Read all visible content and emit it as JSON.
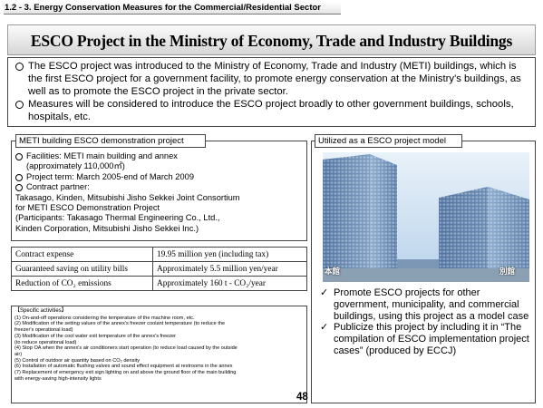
{
  "section": {
    "header": "1.2 - 3. Energy Conservation Measures for the Commercial/Residential Sector"
  },
  "title": "ESCO Project in the Ministry of Economy, Trade and Industry Buildings",
  "intro": {
    "items": [
      "The ESCO project was introduced to the Ministry of Economy, Trade and Industry (METI) buildings, which is the first ESCO project for a government facility, to promote energy conservation at the Ministry's buildings, as well as to promote the ESCO project in the private sector.",
      "Measures will be considered to introduce the ESCO project broadly to other government buildings, schools, hospitals, etc."
    ]
  },
  "demo": {
    "tab": "METI building ESCO demonstration project",
    "facilities_label": "Facilities: METI  main building and annex",
    "facilities_area": "(approximately 110,000㎡)",
    "period": "Project term: March 2005-end of March 2009",
    "partner_label": "Contract partner:",
    "partner_line1": "Takasago, Kinden, Mitsubishi Jisho Sekkei Joint Consortium",
    "partner_line2": "for METI ESCO  Demonstration Project",
    "partner_line3": "(Participants: Takasago Thermal Engineering Co., Ltd.,",
    "partner_line4": "Kinden Corporation, Mitsubishi Jisho Sekkei Inc.)"
  },
  "stats": {
    "rows": [
      {
        "label": "Contract expense",
        "value": "19.95 million yen (including tax)"
      },
      {
        "label": "Guaranteed saving on utility bills",
        "value": "Approximately 5.5 million yen/year"
      },
      {
        "label": "Reduction of CO₂ emissions",
        "value": "Approximately 160 t - CO₂/year"
      }
    ]
  },
  "activities": {
    "title": "【Specific activities】",
    "items": [
      "(1)  On-and-off operations considering the temperature of the machine room, etc.",
      "(2)  Modification of the setting values of the annex's freezer coolant temperature (to reduce the",
      "       freezer's operational load)",
      "(3)  Modification of the cool water exit temperature of the annex's freezer",
      "       (to reduce operational load)",
      "(4)  Stop OA  when the annex's air conditioners start operation (to reduce load caused by the outside",
      "       air)",
      "(5)  Control of outdoor air quantity based on CO₂ density",
      "(6)  Installation of automatic flushing valves and sound effect equipment at restrooms in the annex",
      "(7)  Replacement of  emergency exit sign lighting on and above the ground floor of the main building",
      "       with energy-saving high-intensity lights"
    ]
  },
  "page_number": "48",
  "model": {
    "tab": "Utilized as a ESCO project model",
    "photo_labels": {
      "main": "本館",
      "annex": "別館"
    },
    "items": [
      "Promote ESCO projects for other government, municipality, and commercial buildings, using this project as a model case",
      "Publicize this project by including it in “The compilation of ESCO implementation project cases” (produced by ECCJ)"
    ]
  },
  "colors": {
    "sky": "#c9def0",
    "building": "#6f8fb4",
    "banner": "#d6d6d6"
  }
}
